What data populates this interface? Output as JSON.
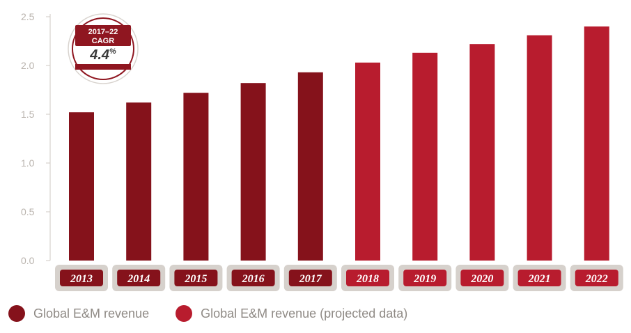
{
  "chart_data": {
    "type": "bar",
    "categories": [
      "2013",
      "2014",
      "2015",
      "2016",
      "2017",
      "2018",
      "2019",
      "2020",
      "2021",
      "2022"
    ],
    "values": [
      1.52,
      1.62,
      1.72,
      1.82,
      1.93,
      2.03,
      2.13,
      2.22,
      2.31,
      2.4
    ],
    "projected_from_index": 5,
    "ylim": [
      0,
      2.5
    ],
    "yticks": [
      "0.0",
      "0.5",
      "1.0",
      "1.5",
      "2.0",
      "2.5"
    ],
    "title": "",
    "xlabel": "",
    "ylabel": "",
    "legend": [
      {
        "label": "Global E&M revenue",
        "color": "#85121b"
      },
      {
        "label": "Global E&M revenue (projected data)",
        "color": "#b81c2e"
      }
    ],
    "legend_position": "bottom-left",
    "grid": false
  },
  "badge": {
    "line1": "2017–22",
    "line2": "CAGR",
    "value": "4.4",
    "unit": "%"
  },
  "colors": {
    "actual": "#85121b",
    "projected": "#b81c2e",
    "axis": "#cfc9c3",
    "tick_text": "#b9b3ad",
    "label_box_outer": "#d6d1cc"
  }
}
